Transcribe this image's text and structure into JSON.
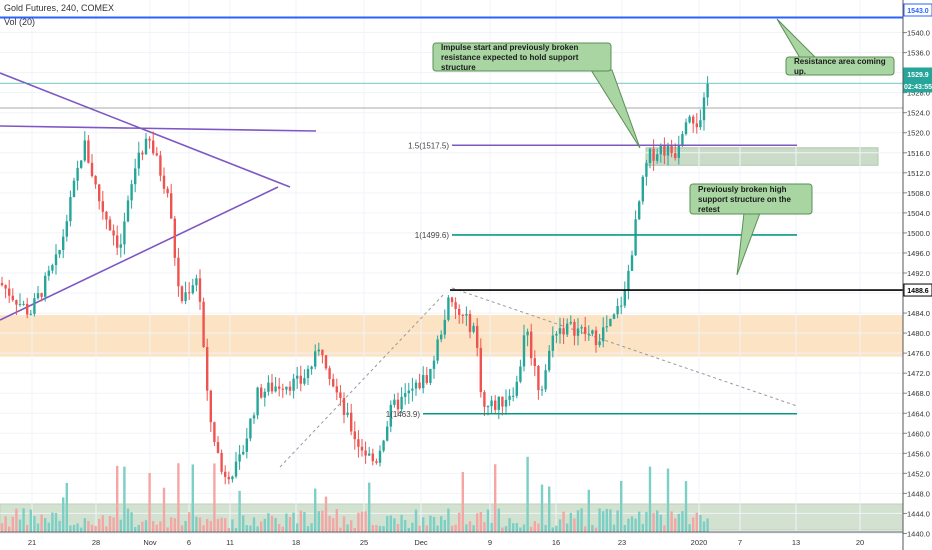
{
  "header": {
    "symbol_line": "Gold Futures, 240, COMEX",
    "volume_line": "Vol (20)"
  },
  "chart_data": {
    "type": "candlestick",
    "instrument": "Gold Futures",
    "timeframe": "240",
    "exchange": "COMEX",
    "indicator": "Vol (20)",
    "ylim": [
      1437,
      1546
    ],
    "y_ticks": [
      1440.0,
      1444.0,
      1448.0,
      1452.0,
      1456.0,
      1460.0,
      1464.0,
      1468.0,
      1472.0,
      1476.0,
      1480.0,
      1484.0,
      1488.0,
      1492.0,
      1496.0,
      1500.0,
      1504.0,
      1508.0,
      1512.0,
      1516.0,
      1520.0,
      1524.0,
      1528.0,
      1532.0,
      1536.0,
      1540.0
    ],
    "x_tick_labels": [
      "21",
      "28",
      "Nov",
      "6",
      "11",
      "18",
      "25",
      "Dec",
      "9",
      "16",
      "23",
      "2020",
      "7",
      "13",
      "20"
    ],
    "price_labels": [
      {
        "value": "1543.0",
        "color": "#2962ff"
      },
      {
        "value": "1529.9",
        "color": "#26a69a"
      },
      {
        "value": "02:43:55",
        "color": "#26a69a"
      },
      {
        "value": "1488.6",
        "color": "#000000"
      }
    ],
    "horizontal_levels": [
      {
        "label": "1.5(1517.5)",
        "value": 1517.5,
        "color": "#7e57c2"
      },
      {
        "label": "1(1499.6)",
        "value": 1499.6,
        "color": "#089981"
      },
      {
        "label": "",
        "value": 1488.6,
        "color": "#000000"
      },
      {
        "label": "1(1463.9)",
        "value": 1463.9,
        "color": "#089981"
      },
      {
        "label": "",
        "value": 1543.0,
        "color": "#2962ff"
      }
    ],
    "zones": [
      {
        "name": "support zone",
        "from": 1475.3,
        "to": 1483.6,
        "color": "#fce0bd"
      },
      {
        "name": "target box",
        "from": 1513.5,
        "to": 1517.0,
        "color": "#c5d9c1"
      }
    ],
    "annotations": [
      "Impulse start and previously broken resistance expected to hold support structure",
      "Resistance area coming up.",
      "Previously broken high support structure on the retest"
    ],
    "colors": {
      "up": "#26a69a",
      "down": "#ef5350",
      "vol_up": "#7ccfc4",
      "vol_down": "#f5a6a4"
    },
    "price_path": [
      [
        0,
        1490
      ],
      [
        30,
        1484
      ],
      [
        58,
        1495
      ],
      [
        84,
        1518
      ],
      [
        100,
        1506
      ],
      [
        120,
        1497
      ],
      [
        138,
        1516
      ],
      [
        150,
        1518
      ],
      [
        168,
        1508
      ],
      [
        180,
        1486
      ],
      [
        198,
        1492
      ],
      [
        208,
        1465
      ],
      [
        222,
        1452
      ],
      [
        238,
        1453
      ],
      [
        258,
        1468
      ],
      [
        282,
        1470
      ],
      [
        300,
        1470
      ],
      [
        322,
        1477
      ],
      [
        340,
        1466
      ],
      [
        358,
        1458
      ],
      [
        375,
        1454
      ],
      [
        392,
        1465
      ],
      [
        410,
        1468
      ],
      [
        430,
        1472
      ],
      [
        448,
        1486
      ],
      [
        462,
        1483
      ],
      [
        475,
        1481
      ],
      [
        483,
        1465
      ],
      [
        500,
        1466
      ],
      [
        518,
        1470
      ],
      [
        525,
        1482
      ],
      [
        540,
        1468
      ],
      [
        555,
        1481
      ],
      [
        575,
        1481
      ],
      [
        595,
        1479
      ],
      [
        612,
        1482
      ],
      [
        625,
        1488
      ],
      [
        640,
        1507
      ],
      [
        648,
        1515
      ],
      [
        660,
        1517
      ],
      [
        675,
        1516
      ],
      [
        688,
        1525
      ],
      [
        700,
        1521
      ],
      [
        708,
        1530
      ]
    ]
  }
}
